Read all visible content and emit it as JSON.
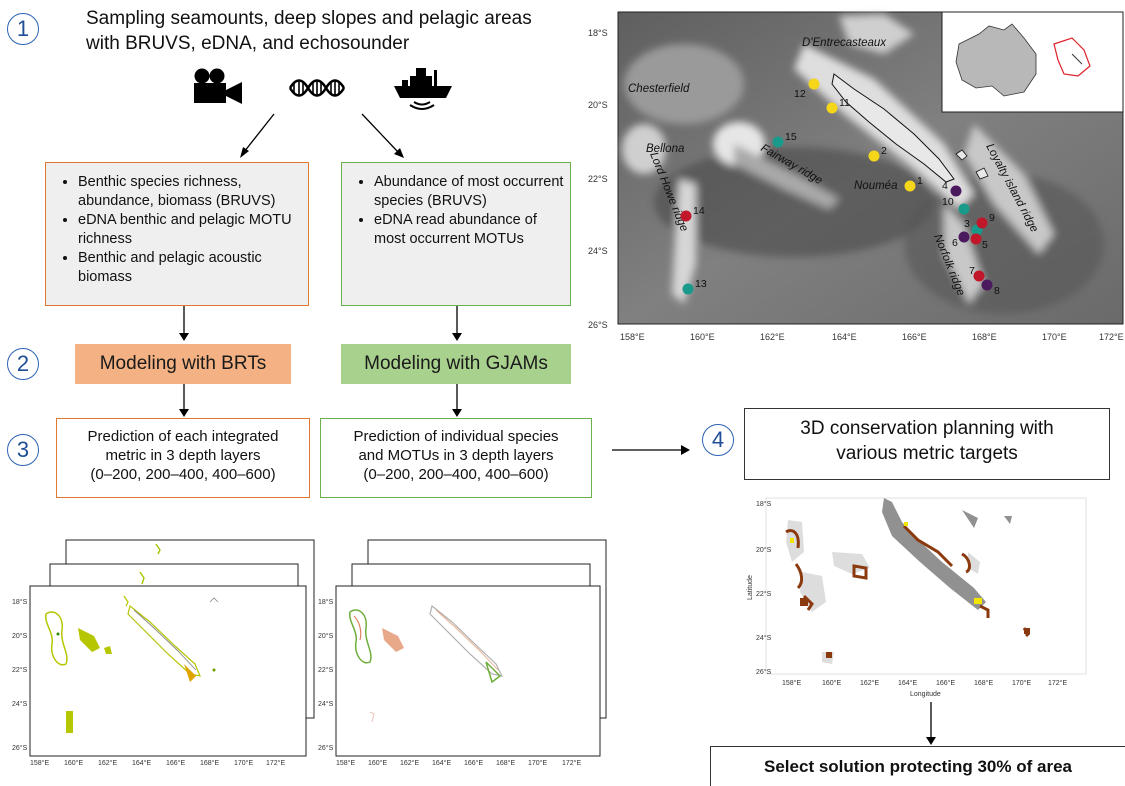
{
  "steps": [
    "1",
    "2",
    "3",
    "4"
  ],
  "title": {
    "line1": "Sampling seamounts, deep slopes and pelagic areas",
    "line2": "with BRUVS, eDNA, and echosounder"
  },
  "icons": [
    "video-camera-icon",
    "dna-icon",
    "research-vessel-icon"
  ],
  "box_left": {
    "items": [
      "Benthic species richness, abundance, biomass (BRUVS)",
      "eDNA benthic and pelagic MOTU richness",
      "Benthic and pelagic acoustic biomass"
    ]
  },
  "box_right": {
    "items": [
      "Abundance of most occurrent species (BRUVS)",
      "eDNA read abundance of most occurrent MOTUs"
    ]
  },
  "model_left": "Modeling with BRTs",
  "model_right": "Modeling with GJAMs",
  "pred_left": {
    "line1": "Prediction of each integrated",
    "line2": "metric in 3 depth layers",
    "line3": "(0–200, 200–400, 400–600)"
  },
  "pred_right": {
    "line1": "Prediction of individual species",
    "line2": "and MOTUs in 3 depth layers",
    "line3": "(0–200, 200–400, 400–600)"
  },
  "planning": {
    "line1": "3D conservation planning with",
    "line2": "various metric targets"
  },
  "select_solution": "Select solution protecting 30% of area",
  "map": {
    "y_ticks": [
      "18°S",
      "20°S",
      "22°S",
      "24°S",
      "26°S"
    ],
    "x_ticks": [
      "158°E",
      "160°E",
      "162°E",
      "164°E",
      "166°E",
      "168°E",
      "170°E",
      "172°E"
    ],
    "labels": {
      "dentrecasteaux": "D'Entrecasteaux",
      "chesterfield": "Chesterfield",
      "bellona": "Bellona",
      "fairway": "Fairway ridge",
      "lordhowe": "Lord Howe ridge",
      "noumea": "Nouméa",
      "loyalty": "Loyalty island ridge",
      "norfolk": "Norfolk ridge"
    },
    "points": [
      {
        "id": "1",
        "color": "#f5d61a"
      },
      {
        "id": "2",
        "color": "#f5d61a"
      },
      {
        "id": "3",
        "color": "#1a9a8a"
      },
      {
        "id": "4",
        "color": "#4b1a5e"
      },
      {
        "id": "5",
        "color": "#c0182a"
      },
      {
        "id": "6",
        "color": "#4b1a5e"
      },
      {
        "id": "7",
        "color": "#c0182a"
      },
      {
        "id": "8",
        "color": "#4b1a5e"
      },
      {
        "id": "9",
        "color": "#c0182a"
      },
      {
        "id": "10",
        "color": "#1a9a8a"
      },
      {
        "id": "11",
        "color": "#f5d61a"
      },
      {
        "id": "12",
        "color": "#f5d61a"
      },
      {
        "id": "13",
        "color": "#1a9a8a"
      },
      {
        "id": "14",
        "color": "#c0182a"
      },
      {
        "id": "15",
        "color": "#1a9a8a"
      }
    ]
  },
  "small_map": {
    "y_ticks": [
      "18°S",
      "20°S",
      "22°S",
      "24°S",
      "26°S"
    ],
    "x_ticks": [
      "158°E",
      "160°E",
      "162°E",
      "164°E",
      "166°E",
      "168°E",
      "170°E",
      "172°E"
    ]
  },
  "planning_map": {
    "y_ticks": [
      "18°S",
      "20°S",
      "22°S",
      "24°S",
      "26°S"
    ],
    "x_ticks": [
      "158°E",
      "160°E",
      "162°E",
      "164°E",
      "166°E",
      "168°E",
      "170°E",
      "172°E"
    ],
    "xlabel": "Longitude",
    "ylabel": "Latitude"
  },
  "colors": {
    "orange_border": "#e0782f",
    "orange_fill": "#f4b183",
    "green_border": "#6ab04c",
    "green_fill": "#a9d18e",
    "circle": "#2d62b3",
    "brown_zone": "#8b3a0f",
    "yellow_zone": "#f2e600"
  }
}
